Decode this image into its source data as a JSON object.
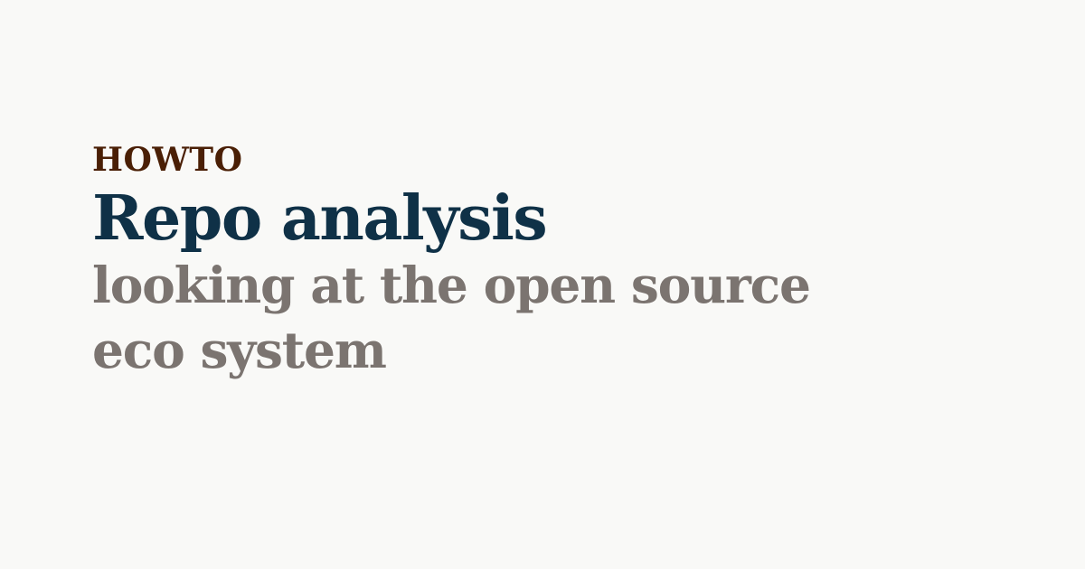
{
  "card": {
    "section": "HOWTO",
    "title": "Repo analysis",
    "subtitle": "looking at the open source eco system"
  },
  "colors": {
    "background": "#f9f9f7",
    "section": "#4a1f05",
    "title": "#0f3147",
    "subtitle": "#7b7470"
  }
}
